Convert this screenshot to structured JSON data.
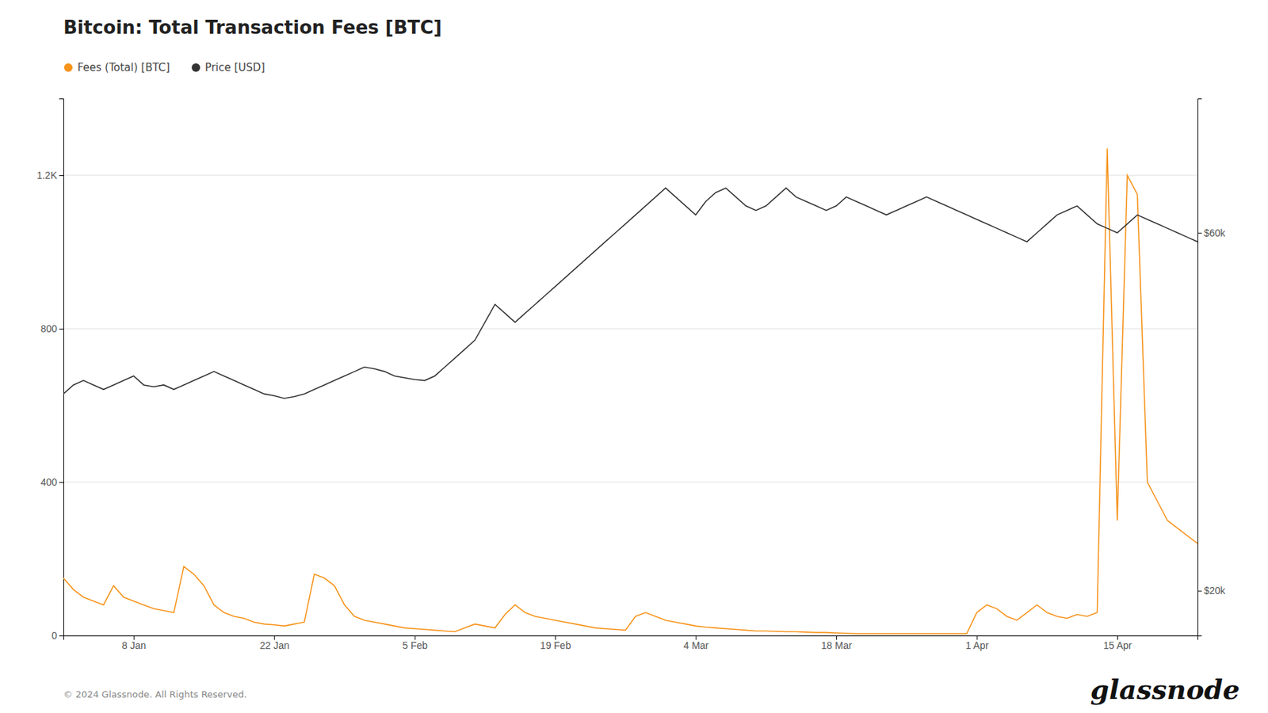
{
  "chart_data": {
    "type": "line",
    "title": "Bitcoin: Total Transaction Fees [BTC]",
    "categories": [
      null,
      null,
      null,
      null,
      null,
      null,
      null,
      "8 Jan",
      null,
      null,
      null,
      null,
      null,
      null,
      null,
      null,
      null,
      null,
      null,
      null,
      null,
      "22 Jan",
      null,
      null,
      null,
      null,
      null,
      null,
      null,
      null,
      null,
      null,
      null,
      null,
      null,
      "5 Feb",
      null,
      null,
      null,
      null,
      null,
      null,
      null,
      null,
      null,
      null,
      null,
      null,
      null,
      "19 Feb",
      null,
      null,
      null,
      null,
      null,
      null,
      null,
      null,
      null,
      null,
      null,
      null,
      null,
      "4 Mar",
      null,
      null,
      null,
      null,
      null,
      null,
      null,
      null,
      null,
      null,
      null,
      null,
      null,
      "18 Mar",
      null,
      null,
      null,
      null,
      null,
      null,
      null,
      null,
      null,
      null,
      null,
      null,
      null,
      "1 Apr",
      null,
      null,
      null,
      null,
      null,
      null,
      null,
      null,
      null,
      null,
      null,
      null,
      null,
      "15 Apr",
      null,
      null,
      null,
      null,
      null,
      null,
      null,
      null
    ],
    "series": [
      {
        "name": "Fees (Total) [BTC]",
        "color": "#f7931a",
        "axis": "y",
        "values": [
          150,
          120,
          100,
          90,
          80,
          130,
          100,
          90,
          80,
          70,
          65,
          60,
          180,
          160,
          130,
          80,
          60,
          50,
          45,
          35,
          30,
          28,
          25,
          30,
          35,
          160,
          150,
          130,
          80,
          50,
          40,
          35,
          30,
          25,
          20,
          18,
          16,
          14,
          12,
          10,
          20,
          30,
          25,
          20,
          55,
          80,
          60,
          50,
          45,
          40,
          35,
          30,
          25,
          20,
          18,
          16,
          14,
          50,
          60,
          50,
          40,
          35,
          30,
          25,
          22,
          20,
          18,
          16,
          14,
          12,
          12,
          11,
          10,
          10,
          9,
          8,
          8,
          7,
          6,
          5,
          5,
          5,
          5,
          5,
          5,
          5,
          5,
          5,
          5,
          5,
          5,
          60,
          80,
          70,
          50,
          40,
          60,
          80,
          60,
          50,
          45,
          55,
          50,
          60,
          1270,
          300,
          1200,
          1150,
          400,
          350,
          300,
          280,
          260,
          240
        ]
      },
      {
        "name": "Price [USD]",
        "color": "#333333",
        "axis": "y2",
        "values": [
          42000,
          43000,
          43500,
          43000,
          42500,
          43000,
          43500,
          44000,
          43000,
          42800,
          43000,
          42500,
          43000,
          43500,
          44000,
          44500,
          44000,
          43500,
          43000,
          42500,
          42000,
          41800,
          41500,
          41700,
          42000,
          42500,
          43000,
          43500,
          44000,
          44500,
          45000,
          44800,
          44500,
          44000,
          43800,
          43600,
          43500,
          44000,
          45000,
          46000,
          47000,
          48000,
          50000,
          52000,
          51000,
          50000,
          51000,
          52000,
          53000,
          54000,
          55000,
          56000,
          57000,
          58000,
          59000,
          60000,
          61000,
          62000,
          63000,
          64000,
          65000,
          64000,
          63000,
          62000,
          63500,
          64500,
          65000,
          64000,
          63000,
          62500,
          63000,
          64000,
          65000,
          64000,
          63500,
          63000,
          62500,
          63000,
          64000,
          63500,
          63000,
          62500,
          62000,
          62500,
          63000,
          63500,
          64000,
          63500,
          63000,
          62500,
          62000,
          61500,
          61000,
          60500,
          60000,
          59500,
          59000,
          60000,
          61000,
          62000,
          62500,
          63000,
          62000,
          61000,
          60500,
          60000,
          61000,
          62000,
          61500,
          61000,
          60500,
          60000,
          59500,
          59000
        ]
      }
    ],
    "ylim": [
      0,
      1400
    ],
    "yticks": [
      0,
      400,
      800,
      {
        "value": 1200,
        "label": "1.2K"
      }
    ],
    "y2lim": [
      15000,
      75000
    ],
    "y2ticks": [
      {
        "value": 20000,
        "label": "$20k"
      },
      {
        "value": 60000,
        "label": "$60k"
      }
    ],
    "grid": true,
    "legend": "top-left",
    "annotations": [
      "© 2024 Glassnode. All Rights Reserved.",
      "glassnode"
    ]
  }
}
